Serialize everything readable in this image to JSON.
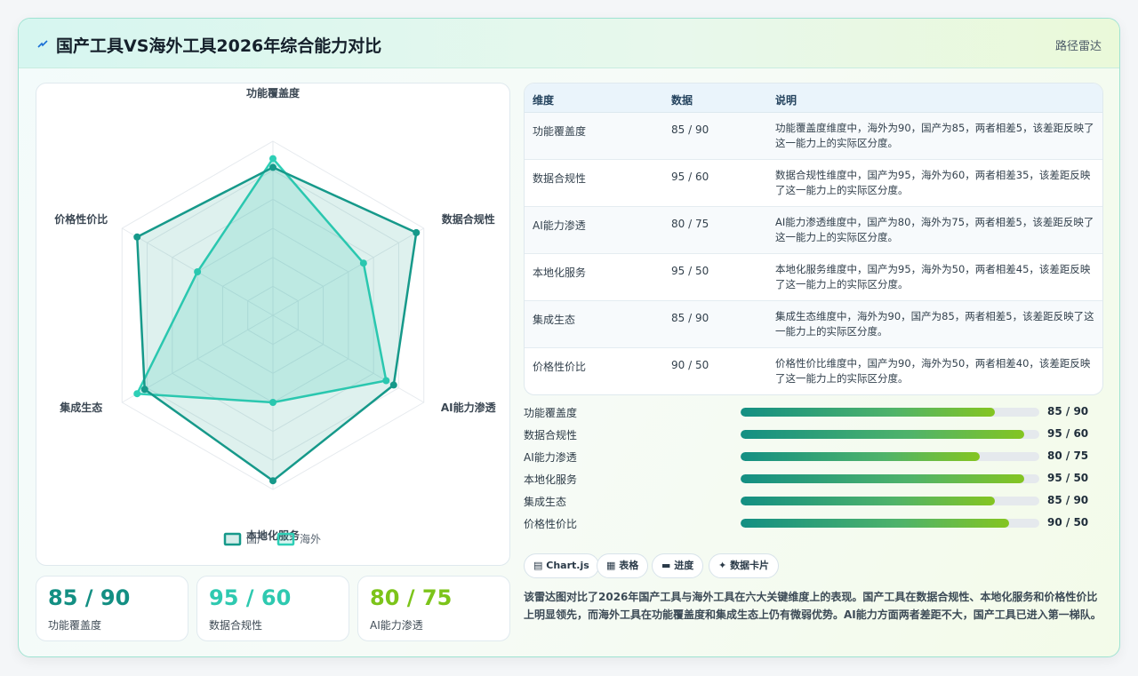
{
  "header": {
    "title": "国产工具VS海外工具2026年综合能力对比",
    "tag": "路径雷达"
  },
  "chart_data": {
    "type": "radar",
    "categories": [
      "功能覆盖度",
      "数据合规性",
      "AI能力渗透",
      "本地化服务",
      "集成生态",
      "价格性价比"
    ],
    "series": [
      {
        "name": "国产",
        "values": [
          85,
          95,
          80,
          95,
          85,
          90
        ],
        "color": "#16998a"
      },
      {
        "name": "海外",
        "values": [
          90,
          60,
          75,
          50,
          90,
          50
        ],
        "color": "#2ecfb6"
      }
    ],
    "rlim": [
      0,
      100
    ],
    "grid": true,
    "legend": "bottom"
  },
  "kpis": [
    {
      "value": "85 / 90",
      "label": "功能覆盖度",
      "color": "#138f83"
    },
    {
      "value": "95 / 60",
      "label": "数据合规性",
      "color": "#2ec9b0"
    },
    {
      "value": "80 / 75",
      "label": "AI能力渗透",
      "color": "#7cc41a"
    }
  ],
  "table": {
    "headers": [
      "维度",
      "数据",
      "说明"
    ],
    "rows": [
      {
        "dim": "功能覆盖度",
        "data": "85 / 90",
        "desc": "功能覆盖度维度中，海外为90，国产为85，两者相差5，该差距反映了这一能力上的实际区分度。"
      },
      {
        "dim": "数据合规性",
        "data": "95 / 60",
        "desc": "数据合规性维度中，国产为95，海外为60，两者相差35，该差距反映了这一能力上的实际区分度。"
      },
      {
        "dim": "AI能力渗透",
        "data": "80 / 75",
        "desc": "AI能力渗透维度中，国产为80，海外为75，两者相差5，该差距反映了这一能力上的实际区分度。"
      },
      {
        "dim": "本地化服务",
        "data": "95 / 50",
        "desc": "本地化服务维度中，国产为95，海外为50，两者相差45，该差距反映了这一能力上的实际区分度。"
      },
      {
        "dim": "集成生态",
        "data": "85 / 90",
        "desc": "集成生态维度中，海外为90，国产为85，两者相差5，该差距反映了这一能力上的实际区分度。"
      },
      {
        "dim": "价格性价比",
        "data": "90 / 50",
        "desc": "价格性价比维度中，国产为90，海外为50，两者相差40，该差距反映了这一能力上的实际区分度。"
      }
    ]
  },
  "progress": [
    {
      "label": "功能覆盖度",
      "value": "85 / 90",
      "level": 0.85
    },
    {
      "label": "数据合规性",
      "value": "95 / 60",
      "level": 0.95
    },
    {
      "label": "AI能力渗透",
      "value": "80 / 75",
      "level": 0.8
    },
    {
      "label": "本地化服务",
      "value": "95 / 50",
      "level": 0.95
    },
    {
      "label": "集成生态",
      "value": "85 / 90",
      "level": 0.85
    },
    {
      "label": "价格性价比",
      "value": "90 / 50",
      "level": 0.9
    }
  ],
  "chips": [
    {
      "icon": "▤",
      "label": "Chart.js"
    },
    {
      "icon": "▦",
      "label": "表格"
    },
    {
      "icon": "▬",
      "label": "进度"
    },
    {
      "icon": "✦",
      "label": "数据卡片"
    }
  ],
  "summary": "该雷达图对比了2026年国产工具与海外工具在六大关键维度上的表现。国产工具在数据合规性、本地化服务和价格性价比上明显领先，而海外工具在功能覆盖度和集成生态上仍有微弱优势。AI能力方面两者差距不大，国产工具已进入第一梯队。"
}
